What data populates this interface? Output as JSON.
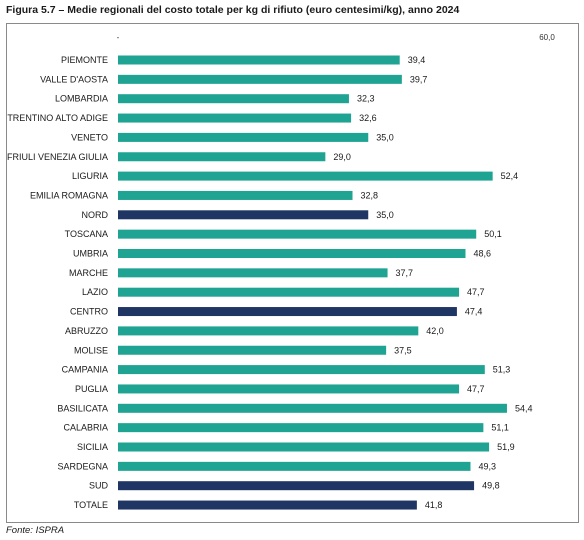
{
  "title": "Figura 5.7 – Medie regionali del costo totale per kg di rifiuto (euro centesimi/kg), anno 2024",
  "source": "Fonte: ISPRA",
  "chart_data": {
    "type": "bar",
    "orientation": "horizontal",
    "categories": [
      "PIEMONTE",
      "VALLE D'AOSTA",
      "LOMBARDIA",
      "TRENTINO ALTO ADIGE",
      "VENETO",
      "FRIULI VENEZIA GIULIA",
      "LIGURIA",
      "EMILIA ROMAGNA",
      "NORD",
      "TOSCANA",
      "UMBRIA",
      "MARCHE",
      "LAZIO",
      "CENTRO",
      "ABRUZZO",
      "MOLISE",
      "CAMPANIA",
      "PUGLIA",
      "BASILICATA",
      "CALABRIA",
      "SICILIA",
      "SARDEGNA",
      "SUD",
      "TOTALE"
    ],
    "values": [
      39.4,
      39.7,
      32.3,
      32.6,
      35.0,
      29.0,
      52.4,
      32.8,
      35.0,
      50.1,
      48.6,
      37.7,
      47.7,
      47.4,
      42.0,
      37.5,
      51.3,
      47.7,
      54.4,
      51.1,
      51.9,
      49.3,
      49.8,
      41.8
    ],
    "value_labels": [
      "39,4",
      "39,7",
      "32,3",
      "32,6",
      "35,0",
      "29,0",
      "52,4",
      "32,8",
      "35,0",
      "50,1",
      "48,6",
      "37,7",
      "47,7",
      "47,4",
      "42,0",
      "37,5",
      "51,3",
      "47,7",
      "54,4",
      "51,1",
      "51,9",
      "49,3",
      "49,8",
      "41,8"
    ],
    "aggregate_categories": [
      "NORD",
      "CENTRO",
      "SUD",
      "TOTALE"
    ],
    "x_tick_labels": [
      "-",
      "60,0"
    ],
    "xlim": [
      0,
      60
    ],
    "colors": {
      "region": "#1fa392",
      "aggregate": "#1f3563"
    },
    "grid": false
  }
}
